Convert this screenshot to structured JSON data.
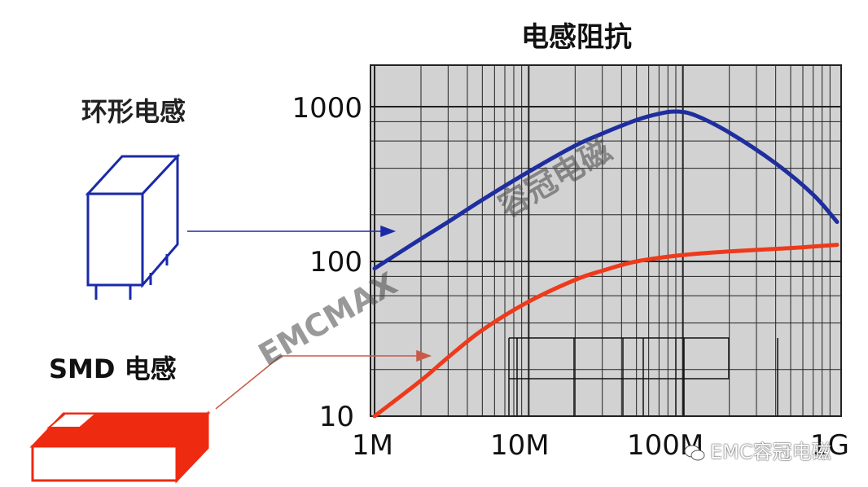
{
  "chart_data": {
    "type": "line",
    "title": "电感阻抗",
    "x_scale": "log",
    "y_scale": "log",
    "xlim": [
      1000000,
      1000000000
    ],
    "ylim": [
      10,
      1000
    ],
    "x_tick_labels": [
      "1M",
      "10M",
      "100M",
      "1G"
    ],
    "y_tick_labels": [
      "10",
      "100",
      "1000"
    ],
    "grid": true,
    "series": [
      {
        "name": "环形电感",
        "color": "#1f2e9e",
        "x": [
          1000000,
          2000000,
          3000000,
          5000000,
          10000000,
          20000000,
          30000000,
          50000000,
          70000000,
          90000000,
          120000000,
          200000000,
          400000000,
          700000000,
          1000000000
        ],
        "y": [
          90,
          140,
          180,
          250,
          380,
          560,
          670,
          820,
          900,
          930,
          880,
          680,
          430,
          270,
          180
        ]
      },
      {
        "name": "SMD 电感",
        "color": "#ee3a1c",
        "x": [
          1000000,
          2000000,
          3000000,
          5000000,
          10000000,
          20000000,
          30000000,
          50000000,
          100000000,
          200000000,
          500000000,
          1000000000
        ],
        "y": [
          10,
          17,
          24,
          36,
          55,
          76,
          87,
          100,
          110,
          116,
          122,
          128
        ]
      }
    ],
    "annotations": {
      "toroid_label": "环形电感",
      "smd_label": "SMD 电感"
    }
  },
  "watermarks": [
    "容冠电磁",
    "EMCMAX"
  ],
  "credit": "EMC容冠电磁"
}
